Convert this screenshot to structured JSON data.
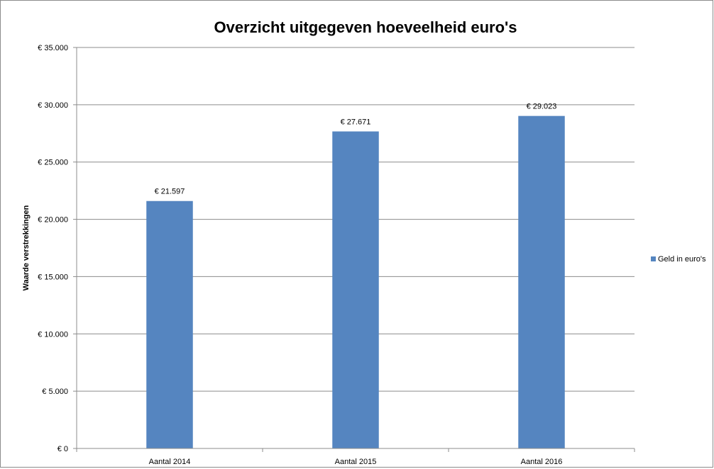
{
  "chart_data": {
    "type": "bar",
    "title": "Overzicht uitgegeven hoeveelheid euro's",
    "xlabel": "",
    "ylabel": "Waarde verstrekkingen",
    "categories": [
      "Aantal 2014",
      "Aantal 2015",
      "Aantal 2016"
    ],
    "series": [
      {
        "name": "Geld in euro's",
        "values": [
          21597,
          27671,
          29023
        ],
        "data_labels": [
          "€ 21.597",
          "€ 27.671",
          "€ 29.023"
        ],
        "color": "#5585C0"
      }
    ],
    "ylim": [
      0,
      35000
    ],
    "y_ticks": [
      0,
      5000,
      10000,
      15000,
      20000,
      25000,
      30000,
      35000
    ],
    "y_tick_labels": [
      "€ 0",
      "€ 5.000",
      "€ 10.000",
      "€ 15.000",
      "€ 20.000",
      "€ 25.000",
      "€ 30.000",
      "€ 35.000"
    ],
    "grid": true,
    "legend_position": "right"
  }
}
